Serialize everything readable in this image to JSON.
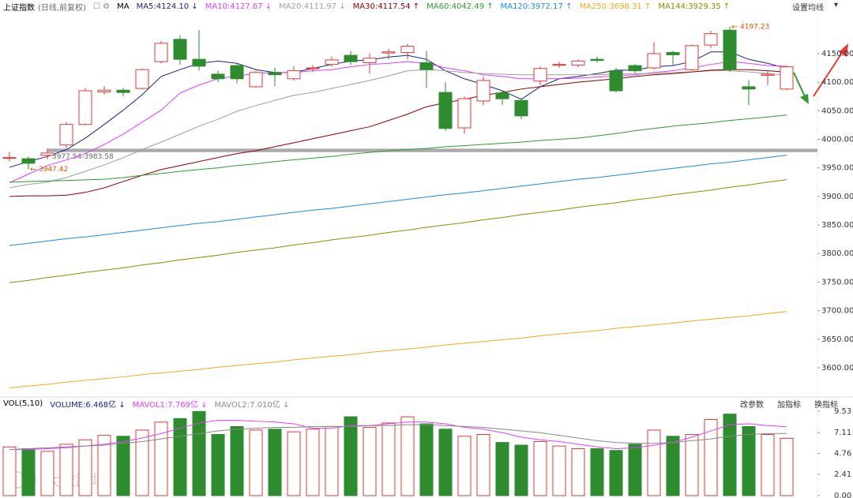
{
  "chart_data": {
    "type": "candlestick",
    "title": "上证指数",
    "subtitle": "(日线,前复权)",
    "ma_label": "MA",
    "ma_setting": "设置均线",
    "ylim": [
      3553,
      4219
    ],
    "yticks": [
      {
        "value": 4150,
        "label": "4150.00"
      },
      {
        "value": 4100,
        "label": "4100.00"
      },
      {
        "value": 4050,
        "label": "4050.00"
      },
      {
        "value": 4000,
        "label": "4000.00"
      },
      {
        "value": 3950,
        "label": "3950.00"
      },
      {
        "value": 3900,
        "label": "3900.00"
      },
      {
        "value": 3850,
        "label": "3850.00"
      },
      {
        "value": 3800,
        "label": "3800.00"
      },
      {
        "value": 3750,
        "label": "3750.00"
      },
      {
        "value": 3700,
        "label": "3700.00"
      },
      {
        "value": 3650,
        "label": "3650.00"
      },
      {
        "value": 3600,
        "label": "3600.00"
      }
    ],
    "up_color": "#e53935",
    "down_color": "#2e8b2e",
    "candles": {
      "open": [
        3967,
        3966,
        3972,
        3990,
        4026,
        4083,
        4086,
        4089,
        4136,
        4175,
        4140,
        4114,
        4129,
        4092,
        4117,
        4106,
        4124,
        4131,
        4147,
        4134,
        4151,
        4152,
        4134,
        4082,
        4020,
        4067,
        4081,
        4068,
        4102,
        4130,
        4130,
        4140,
        4120,
        4129,
        4125,
        4152,
        4122,
        4165,
        4191,
        4092,
        4112,
        4088
      ],
      "high": [
        3978,
        3970,
        3984,
        4030,
        4090,
        4093,
        4090,
        4124,
        4172,
        4182,
        4191,
        4120,
        4133,
        4120,
        4125,
        4128,
        4130,
        4145,
        4155,
        4150,
        4158,
        4167,
        4155,
        4100,
        4075,
        4110,
        4085,
        4072,
        4128,
        4136,
        4140,
        4145,
        4125,
        4132,
        4170,
        4155,
        4166,
        4190,
        4197.23,
        4104,
        4120,
        4129
      ],
      "low": [
        3961,
        3947.42,
        3965,
        3985,
        4024,
        4078,
        4075,
        4088,
        4133,
        4131,
        4120,
        4100,
        4098,
        4090,
        4093,
        4103,
        4118,
        4127,
        4130,
        4115,
        4140,
        4140,
        4090,
        4015,
        4010,
        4060,
        4060,
        4035,
        4095,
        4125,
        4126,
        4134,
        4082,
        4116,
        4122,
        4130,
        4120,
        4160,
        4118,
        4060,
        4095,
        4086
      ],
      "close": [
        3968,
        3958,
        3976,
        4026,
        4085,
        4086,
        4082,
        4122,
        4168,
        4140,
        4128,
        4106,
        4106,
        4117,
        4113,
        4120,
        4125,
        4139,
        4136,
        4142,
        4153,
        4163,
        4122,
        4019,
        4071,
        4103,
        4071,
        4041,
        4124,
        4131,
        4137,
        4138,
        4085,
        4120,
        4150,
        4148,
        4164,
        4185,
        4122,
        4088,
        4114,
        4127
      ]
    },
    "series": [
      {
        "name": "MA5:4124.10 ↓",
        "color": "#1a237e",
        "values": [
          3951,
          3961,
          3970,
          3982,
          4002,
          4026,
          4051,
          4078,
          4110,
          4122,
          4133,
          4137,
          4133,
          4122,
          4117,
          4117,
          4124,
          4131,
          4137,
          4139,
          4144,
          4147,
          4140,
          4120,
          4106,
          4096,
          4085,
          4070,
          4092,
          4106,
          4110,
          4115,
          4121,
          4121,
          4127,
          4129,
          4136,
          4153,
          4153,
          4140,
          4133,
          4124.1
        ]
      },
      {
        "name": "MA10:4127.67 ↓",
        "color": "#e040fb",
        "values": [
          3924,
          3939,
          3954,
          3964,
          3975,
          3991,
          4009,
          4030,
          4051,
          4081,
          4095,
          4106,
          4111,
          4115,
          4117,
          4117,
          4120,
          4122,
          4127,
          4131,
          4133,
          4136,
          4133,
          4125,
          4120,
          4113,
          4110,
          4106,
          4106,
          4106,
          4107,
          4109,
          4111,
          4113,
          4117,
          4120,
          4125,
          4131,
          4136,
          4133,
          4129,
          4127.67
        ]
      },
      {
        "name": "MA20:4111.97 ↓",
        "color": "#9e9e9e",
        "values": [
          3915,
          3921,
          3925,
          3933,
          3944,
          3955,
          3968,
          3982,
          3995,
          4009,
          4023,
          4035,
          4049,
          4059,
          4068,
          4077,
          4082,
          4089,
          4096,
          4103,
          4111,
          4120,
          4122,
          4120,
          4117,
          4115,
          4114,
          4113,
          4113,
          4113,
          4113,
          4113,
          4114,
          4115,
          4115,
          4117,
          4118,
          4120,
          4120,
          4118,
          4115,
          4111.97
        ]
      },
      {
        "name": "MA30:4117.54 ↑",
        "color": "#8b0000",
        "values": [
          3900,
          3901,
          3901,
          3902,
          3907,
          3915,
          3926,
          3937,
          3947,
          3954,
          3961,
          3968,
          3975,
          3980,
          3987,
          3994,
          4001,
          4008,
          4015,
          4022,
          4033,
          4044,
          4057,
          4064,
          4070,
          4077,
          4082,
          4088,
          4092,
          4096,
          4100,
          4103,
          4106,
          4110,
          4113,
          4115,
          4118,
          4121,
          4122,
          4122,
          4120,
          4117.54
        ]
      },
      {
        "name": "MA60:4042.49 ↑",
        "color": "#2e9a2e",
        "values": [
          3925,
          3926,
          3927,
          3928,
          3929,
          3930,
          3933,
          3937,
          3940,
          3944,
          3947,
          3950,
          3954,
          3957,
          3961,
          3964,
          3967,
          3970,
          3974,
          3977,
          3980,
          3982,
          3984,
          3987,
          3989,
          3991,
          3993,
          3995,
          3998,
          4000,
          4002,
          4006,
          4010,
          4015,
          4019,
          4023,
          4026,
          4029,
          4033,
          4036,
          4039,
          4042.49
        ]
      },
      {
        "name": "MA120:3972.17 ↑",
        "color": "#1e88e5",
        "values": [
          3814,
          3818,
          3822,
          3826,
          3829,
          3833,
          3837,
          3841,
          3845,
          3849,
          3853,
          3856,
          3860,
          3864,
          3868,
          3872,
          3876,
          3879,
          3883,
          3887,
          3891,
          3895,
          3899,
          3903,
          3906,
          3910,
          3914,
          3918,
          3922,
          3926,
          3930,
          3933,
          3937,
          3941,
          3945,
          3949,
          3953,
          3957,
          3960,
          3964,
          3968,
          3972.17
        ]
      },
      {
        "name": "MA250:3698.31 ↑",
        "color": "#f5a623",
        "values": [
          3565,
          3568,
          3571,
          3575,
          3578,
          3581,
          3584,
          3588,
          3591,
          3594,
          3597,
          3601,
          3604,
          3607,
          3610,
          3614,
          3617,
          3620,
          3623,
          3627,
          3630,
          3633,
          3636,
          3640,
          3643,
          3646,
          3649,
          3652,
          3656,
          3659,
          3662,
          3665,
          3669,
          3672,
          3675,
          3678,
          3682,
          3685,
          3688,
          3691,
          3695,
          3698.31
        ]
      },
      {
        "name": "MA144:3929.35 ↑",
        "color": "#8b8b00",
        "values": [
          3749,
          3753,
          3758,
          3762,
          3767,
          3771,
          3775,
          3780,
          3784,
          3789,
          3793,
          3797,
          3802,
          3806,
          3810,
          3815,
          3819,
          3824,
          3828,
          3832,
          3837,
          3841,
          3846,
          3850,
          3854,
          3859,
          3863,
          3868,
          3872,
          3876,
          3881,
          3885,
          3889,
          3894,
          3898,
          3903,
          3907,
          3911,
          3916,
          3920,
          3925,
          3929.35
        ]
      }
    ],
    "gap": [
      3977.54,
      3983.58
    ],
    "gap_label": "3977.54-3983.58",
    "volume": {
      "title": "VOL(5,10)",
      "name": "VOLUME:6.468亿 ↓",
      "color": "#1a237e",
      "ylim": [
        0,
        9.53
      ],
      "yticks": [
        9.53,
        7.11,
        4.76,
        2.41,
        {
          "value": 0,
          "label": "0.00"
        }
      ],
      "values": [
        5.5,
        5.3,
        5.0,
        5.8,
        6.3,
        6.8,
        6.7,
        7.4,
        8.3,
        8.7,
        9.5,
        6.9,
        7.8,
        7.4,
        7.5,
        7.2,
        7.5,
        7.8,
        8.9,
        7.7,
        8.2,
        8.9,
        8.1,
        7.5,
        6.7,
        6.9,
        6.0,
        5.7,
        6.1,
        5.6,
        5.3,
        5.3,
        5.1,
        5.8,
        7.4,
        6.7,
        6.9,
        8.6,
        9.2,
        7.8,
        6.9,
        6.468
      ],
      "series": [
        {
          "name": "MAVOL1:7.769亿 ↓",
          "color": "#e040fb",
          "values": [
            5.2,
            5.2,
            5.3,
            5.4,
            5.6,
            5.8,
            6.1,
            6.5,
            7.0,
            7.6,
            8.2,
            8.5,
            8.5,
            8.4,
            8.3,
            8.1,
            7.6,
            7.6,
            7.9,
            7.9,
            8.1,
            8.3,
            8.3,
            8.1,
            7.7,
            7.5,
            7.1,
            6.6,
            6.3,
            6.1,
            5.8,
            5.5,
            5.3,
            5.4,
            5.7,
            6.0,
            6.6,
            7.3,
            8.0,
            8.1,
            7.9,
            7.769
          ]
        },
        {
          "name": "MAVOL2:7.010亿 ↓",
          "color": "#888888",
          "values": [
            5.2,
            5.3,
            5.4,
            5.5,
            5.6,
            5.7,
            5.9,
            6.1,
            6.4,
            6.7,
            7.0,
            7.3,
            7.5,
            7.6,
            7.7,
            7.7,
            7.8,
            7.8,
            7.8,
            7.9,
            7.9,
            8.0,
            8.0,
            7.9,
            7.8,
            7.7,
            7.5,
            7.3,
            7.1,
            6.8,
            6.5,
            6.2,
            6.0,
            5.9,
            5.9,
            6.0,
            6.2,
            6.4,
            6.7,
            6.9,
            7.0,
            7.01
          ]
        }
      ],
      "buttons": [
        "改参数",
        "加指标",
        "换指标"
      ]
    },
    "watermark": "大数跨境"
  }
}
